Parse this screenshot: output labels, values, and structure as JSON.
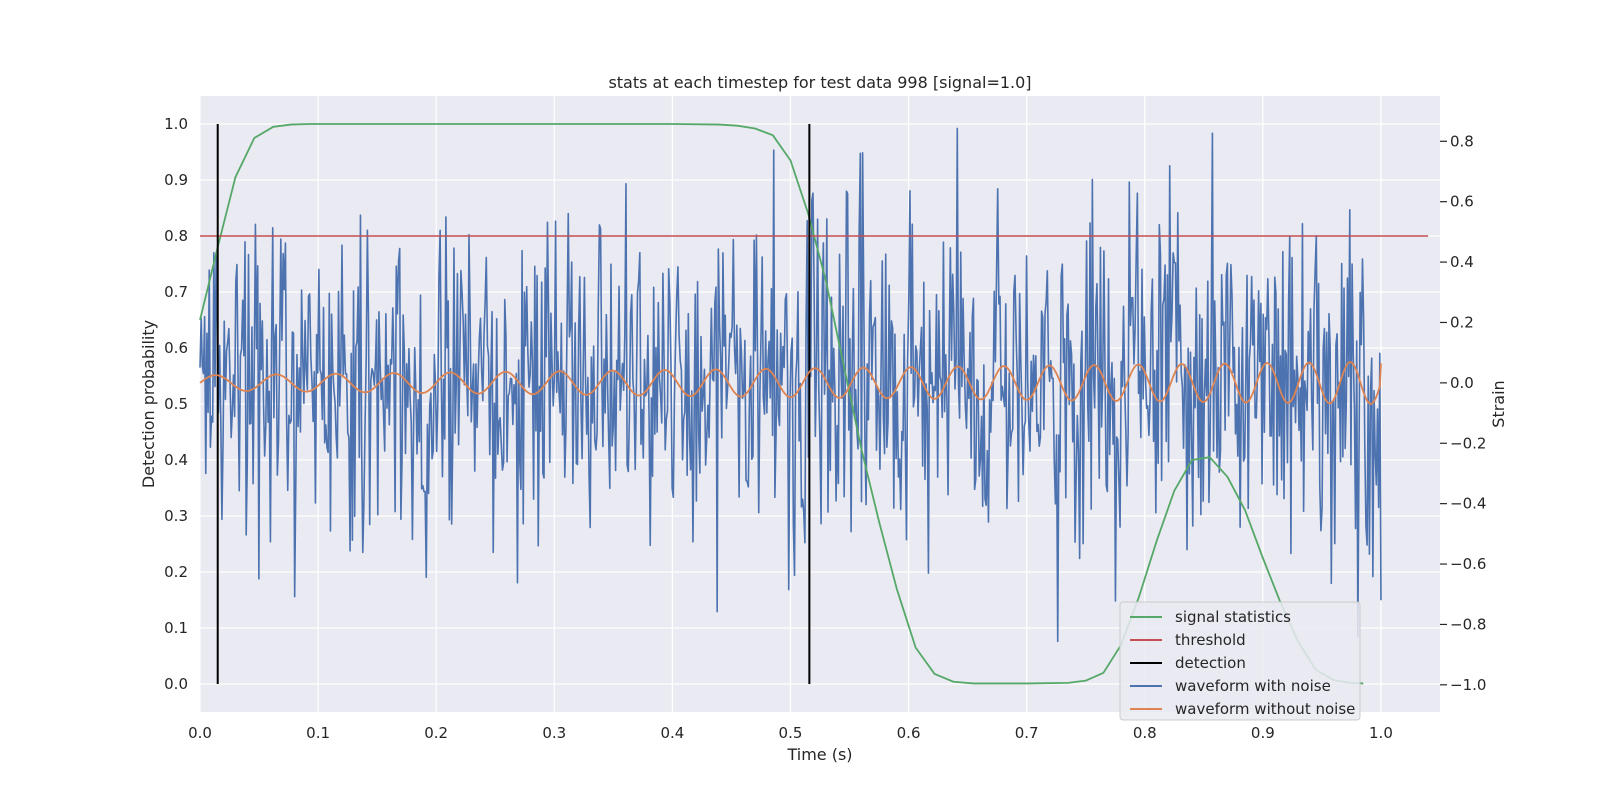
{
  "chart_data": {
    "type": "line",
    "title": "stats at each timestep for test data 998 [signal=1.0]",
    "xlabel": "Time (s)",
    "ylabel_left": "Detection probability",
    "ylabel_right": "Strain",
    "xlim": [
      0.0,
      1.05
    ],
    "ylim_left": [
      -0.05,
      1.05
    ],
    "ylim_right": [
      -1.09,
      0.95
    ],
    "x_ticks": [
      0.0,
      0.1,
      0.2,
      0.3,
      0.4,
      0.5,
      0.6,
      0.7,
      0.8,
      0.9,
      1.0
    ],
    "x_tick_labels": [
      "0.0",
      "0.1",
      "0.2",
      "0.3",
      "0.4",
      "0.5",
      "0.6",
      "0.7",
      "0.8",
      "0.9",
      "1.0"
    ],
    "y_left_ticks": [
      0.0,
      0.1,
      0.2,
      0.3,
      0.4,
      0.5,
      0.6,
      0.7,
      0.8,
      0.9,
      1.0
    ],
    "y_left_tick_labels": [
      "0.0",
      "0.1",
      "0.2",
      "0.3",
      "0.4",
      "0.5",
      "0.6",
      "0.7",
      "0.8",
      "0.9",
      "1.0"
    ],
    "y_right_ticks": [
      -1.0,
      -0.8,
      -0.6,
      -0.4,
      -0.2,
      0.0,
      0.2,
      0.4,
      0.6,
      0.8
    ],
    "y_right_tick_labels": [
      "−1.0",
      "−0.8",
      "−0.6",
      "−0.4",
      "−0.2",
      "0.0",
      "0.2",
      "0.4",
      "0.6",
      "0.8"
    ],
    "grid": true,
    "legend_position": "lower-right",
    "background_color": "#eaeaf2",
    "series": [
      {
        "name": "signal statistics",
        "axis": "left",
        "color": "#55a868",
        "x": [
          0.0,
          0.015,
          0.03,
          0.046,
          0.062,
          0.077,
          0.093,
          0.11,
          0.2,
          0.3,
          0.4,
          0.44,
          0.455,
          0.47,
          0.485,
          0.5,
          0.515,
          0.53,
          0.545,
          0.56,
          0.575,
          0.59,
          0.606,
          0.622,
          0.638,
          0.655,
          0.7,
          0.735,
          0.75,
          0.765,
          0.78,
          0.795,
          0.81,
          0.825,
          0.84,
          0.855,
          0.87,
          0.885,
          0.9,
          0.915,
          0.93,
          0.945,
          0.96,
          0.975,
          0.985
        ],
        "y": [
          0.65,
          0.78,
          0.905,
          0.975,
          0.995,
          0.999,
          1.0,
          1.0,
          1.0,
          1.0,
          1.0,
          0.999,
          0.997,
          0.992,
          0.98,
          0.935,
          0.84,
          0.72,
          0.57,
          0.42,
          0.29,
          0.17,
          0.065,
          0.018,
          0.004,
          0.001,
          0.001,
          0.002,
          0.006,
          0.02,
          0.07,
          0.155,
          0.255,
          0.345,
          0.4,
          0.405,
          0.37,
          0.31,
          0.225,
          0.145,
          0.075,
          0.025,
          0.007,
          0.002,
          0.001
        ]
      },
      {
        "name": "threshold",
        "axis": "left",
        "color": "#c44e52",
        "x": [
          0.0,
          1.04
        ],
        "y": [
          0.8,
          0.8
        ]
      },
      {
        "name": "detection",
        "axis": "left",
        "color": "#000000",
        "type": "vlines",
        "x": [
          0.015,
          0.516
        ],
        "y_range": [
          0.0,
          1.0
        ]
      },
      {
        "name": "waveform with noise",
        "axis": "right",
        "color": "#4c72b0",
        "generated": true,
        "n_points": 1024,
        "x_range": [
          0.0,
          1.0
        ],
        "noise_std": 0.28,
        "clip": [
          -1.0,
          0.85
        ]
      },
      {
        "name": "waveform without noise",
        "axis": "right",
        "color": "#dd8452",
        "type": "chirp",
        "x_range": [
          0.0,
          1.0
        ],
        "n_points": 1024,
        "amplitude_start": 0.025,
        "amplitude_end": 0.07,
        "freq_start_hz": 19,
        "freq_end_hz": 29,
        "end_value": 0.065
      }
    ]
  }
}
